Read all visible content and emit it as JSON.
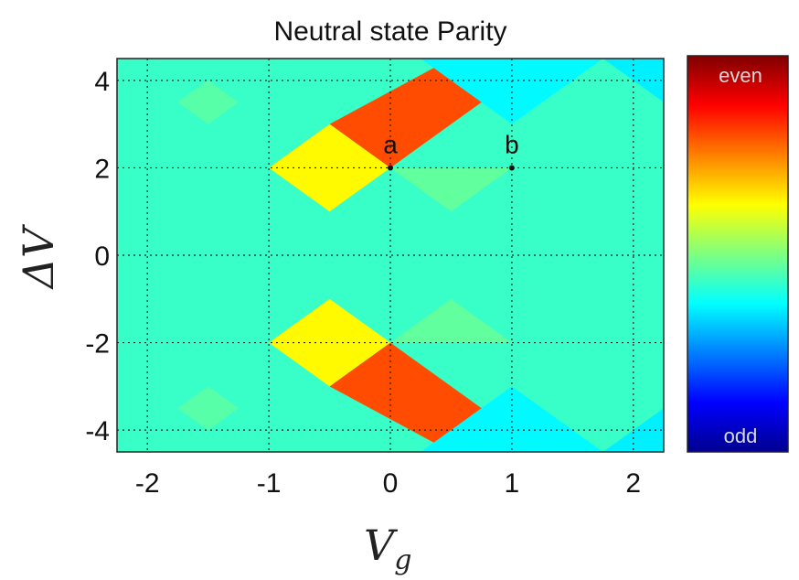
{
  "chart_data": {
    "type": "heatmap",
    "title": "Neutral state Parity",
    "xlabel_base": "V",
    "xlabel_sub": "g",
    "ylabel": "ΔV",
    "xlim": [
      -2.25,
      2.25
    ],
    "ylim": [
      -4.5,
      4.5
    ],
    "xticks": [
      -2,
      -1,
      0,
      1,
      2
    ],
    "yticks": [
      -4,
      -2,
      0,
      2,
      4
    ],
    "grid": true,
    "grid_style": "dotted",
    "colormap": "jet",
    "colorbar": {
      "top_label": "even",
      "bottom_label": "odd"
    },
    "background_value": 0.43,
    "regions": [
      {
        "value": 0.8,
        "points": [
          [
            -0.5,
            3
          ],
          [
            0.5,
            4.5
          ],
          [
            1.25,
            4.5
          ],
          [
            0,
            2
          ]
        ]
      },
      {
        "value": 0.63,
        "points": [
          [
            -1,
            2
          ],
          [
            -0.5,
            3
          ],
          [
            0,
            2
          ],
          [
            -0.5,
            1
          ]
        ]
      },
      {
        "value": 0.37,
        "points": [
          [
            0.25,
            4.5
          ],
          [
            1,
            3
          ],
          [
            1.75,
            4.5
          ]
        ]
      },
      {
        "value": 0.36,
        "points": [
          [
            1.75,
            4.5
          ],
          [
            2.25,
            3.5
          ],
          [
            2.25,
            4.5
          ]
        ]
      },
      {
        "value": 0.46,
        "points": [
          [
            -1.75,
            3.5
          ],
          [
            -1.5,
            3
          ],
          [
            -1.25,
            3.5
          ],
          [
            -1.5,
            4
          ]
        ]
      },
      {
        "value": 0.47,
        "points": [
          [
            0,
            2
          ],
          [
            0.5,
            1
          ],
          [
            1,
            2
          ]
        ]
      },
      {
        "value": 0.8,
        "points": [
          [
            -0.5,
            -3
          ],
          [
            0,
            -2
          ],
          [
            1.25,
            -4.5
          ],
          [
            0.5,
            -4.5
          ]
        ]
      },
      {
        "value": 0.63,
        "points": [
          [
            -1,
            -2
          ],
          [
            -0.5,
            -1
          ],
          [
            0,
            -2
          ],
          [
            -0.5,
            -3
          ]
        ]
      },
      {
        "value": 0.37,
        "points": [
          [
            0.25,
            -4.5
          ],
          [
            1,
            -3
          ],
          [
            1.75,
            -4.5
          ]
        ]
      },
      {
        "value": 0.36,
        "points": [
          [
            1.75,
            -4.5
          ],
          [
            2.25,
            -3.5
          ],
          [
            2.25,
            -4.5
          ]
        ]
      },
      {
        "value": 0.46,
        "points": [
          [
            -1.75,
            -3.5
          ],
          [
            -1.5,
            -3
          ],
          [
            -1.25,
            -3.5
          ],
          [
            -1.5,
            -4
          ]
        ]
      },
      {
        "value": 0.47,
        "points": [
          [
            0,
            -2
          ],
          [
            0.5,
            -1
          ],
          [
            1,
            -2
          ]
        ]
      }
    ],
    "annotations": [
      {
        "label": "a",
        "x": 0,
        "y": 2
      },
      {
        "label": "b",
        "x": 1,
        "y": 2
      }
    ]
  }
}
